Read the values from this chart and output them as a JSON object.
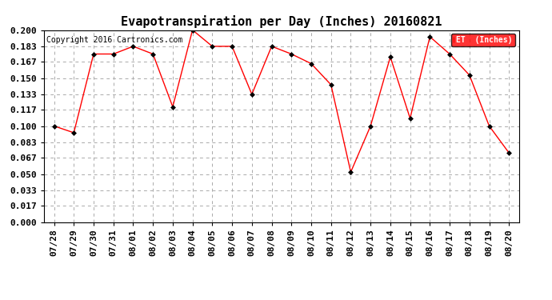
{
  "title": "Evapotranspiration per Day (Inches) 20160821",
  "copyright_text": "Copyright 2016 Cartronics.com",
  "legend_label": "ET  (Inches)",
  "legend_bg": "#ff0000",
  "legend_text_color": "#ffffff",
  "x_labels": [
    "07/28",
    "07/29",
    "07/30",
    "07/31",
    "08/01",
    "08/02",
    "08/03",
    "08/04",
    "08/05",
    "08/06",
    "08/07",
    "08/08",
    "08/09",
    "08/10",
    "08/11",
    "08/12",
    "08/13",
    "08/14",
    "08/15",
    "08/16",
    "08/17",
    "08/18",
    "08/19",
    "08/20"
  ],
  "y_values": [
    0.1,
    0.093,
    0.175,
    0.175,
    0.183,
    0.175,
    0.12,
    0.2,
    0.183,
    0.183,
    0.133,
    0.183,
    0.175,
    0.165,
    0.143,
    0.052,
    0.1,
    0.172,
    0.108,
    0.193,
    0.175,
    0.153,
    0.1,
    0.072
  ],
  "y_ticks": [
    0.0,
    0.017,
    0.033,
    0.05,
    0.067,
    0.083,
    0.1,
    0.117,
    0.133,
    0.15,
    0.167,
    0.183,
    0.2
  ],
  "ylim": [
    0.0,
    0.2
  ],
  "line_color": "#ff0000",
  "marker_color": "#000000",
  "marker_size": 3,
  "grid_color": "#aaaaaa",
  "bg_color": "#ffffff",
  "plot_bg_color": "#ffffff",
  "title_fontsize": 11,
  "tick_fontsize": 8,
  "copyright_fontsize": 7
}
